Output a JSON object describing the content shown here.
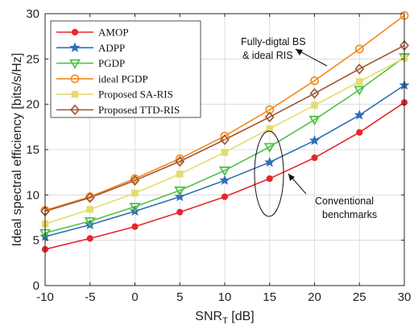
{
  "chart_data": {
    "type": "line",
    "title": "",
    "xlabel": "SNR",
    "xlabel_sub": "T",
    "xlabel_unit": " [dB]",
    "ylabel": "Ideal spectral efficiency [bits/s/Hz]",
    "x": [
      -10,
      -5,
      0,
      5,
      10,
      15,
      20,
      25,
      30
    ],
    "xlim": [
      -10,
      30
    ],
    "ylim": [
      0,
      30
    ],
    "xticks": [
      -10,
      -5,
      0,
      5,
      10,
      15,
      20,
      25,
      30
    ],
    "yticks": [
      0,
      5,
      10,
      15,
      20,
      25,
      30
    ],
    "grid": true,
    "legend_position": "top-left",
    "series": [
      {
        "name": "AMOP",
        "color": "#e8262b",
        "marker": "circle-filled",
        "values": [
          4.0,
          5.2,
          6.5,
          8.1,
          9.8,
          11.8,
          14.1,
          16.9,
          20.2
        ]
      },
      {
        "name": "ADPP",
        "color": "#2f6fb6",
        "marker": "star",
        "values": [
          5.4,
          6.7,
          8.2,
          9.8,
          11.6,
          13.6,
          16.0,
          18.8,
          22.1
        ]
      },
      {
        "name": "PGDP",
        "color": "#53c048",
        "marker": "triangle-down",
        "values": [
          5.8,
          7.1,
          8.7,
          10.5,
          12.7,
          15.3,
          18.3,
          21.6,
          25.2
        ]
      },
      {
        "name": "ideal PGDP",
        "color": "#f28a1c",
        "marker": "circle-open",
        "values": [
          8.3,
          9.8,
          11.8,
          14.0,
          16.5,
          19.4,
          22.6,
          26.1,
          29.8
        ]
      },
      {
        "name": "Proposed SA-RIS",
        "color": "#e4dc6e",
        "marker": "square-filled",
        "values": [
          6.8,
          8.4,
          10.2,
          12.3,
          14.7,
          17.3,
          19.9,
          22.5,
          25.1
        ]
      },
      {
        "name": "Proposed TTD-RIS",
        "color": "#a0522d",
        "marker": "diamond-open",
        "values": [
          8.2,
          9.7,
          11.6,
          13.7,
          16.1,
          18.6,
          21.2,
          23.9,
          26.5
        ]
      }
    ],
    "annotations": [
      {
        "lines": [
          "Fully-digtal BS",
          "& ideal RIS"
        ]
      },
      {
        "lines": [
          "Conventional",
          "benchmarks"
        ]
      }
    ]
  }
}
